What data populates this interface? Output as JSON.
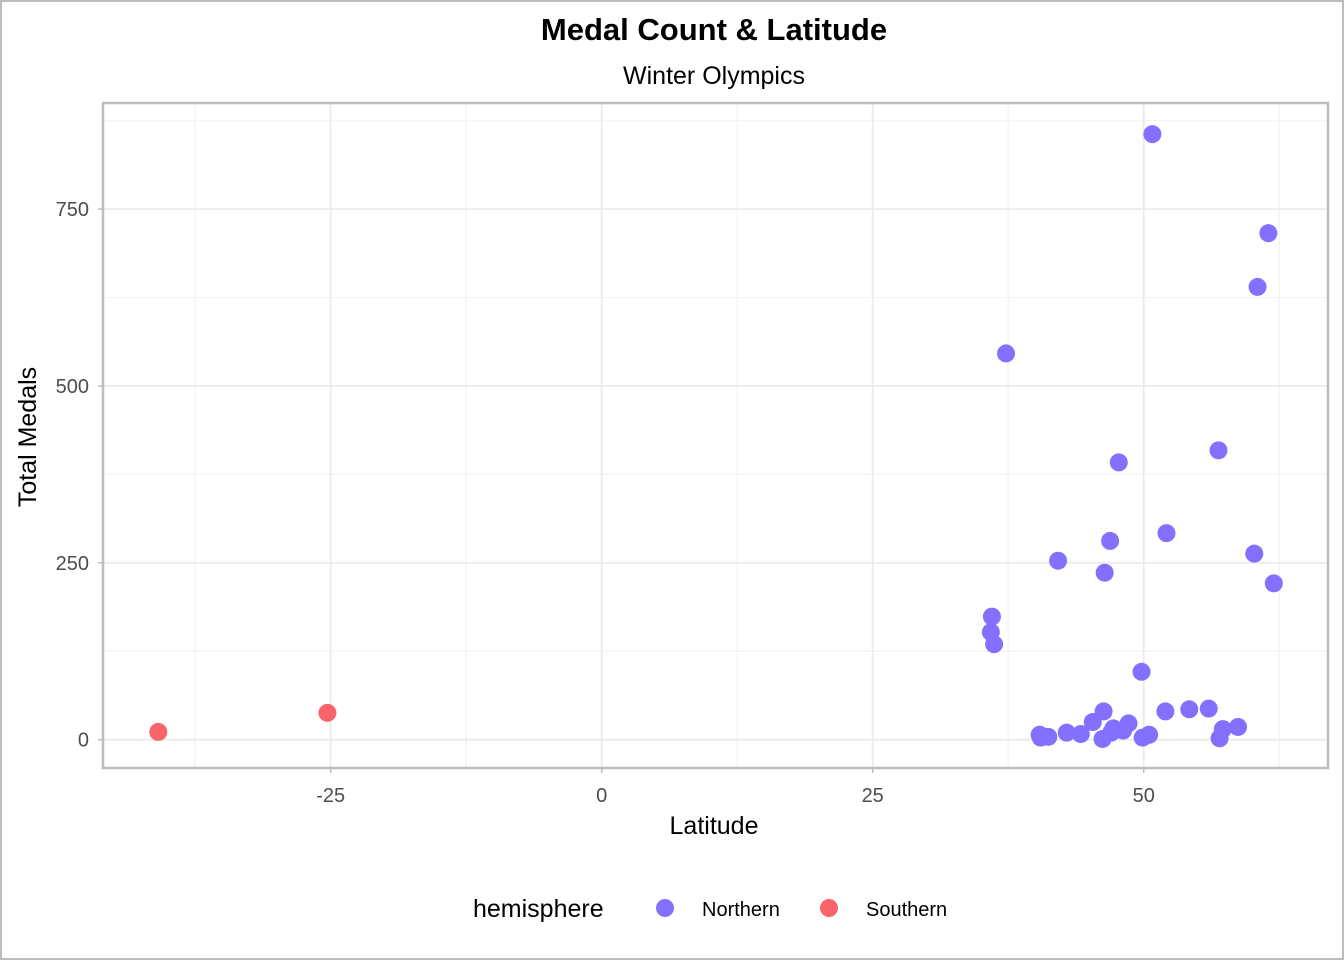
{
  "chart_data": {
    "type": "scatter",
    "title": "Medal Count & Latitude",
    "subtitle": "Winter Olympics",
    "xlabel": "Latitude",
    "ylabel": "Total Medals",
    "xlim": [
      -46,
      67
    ],
    "ylim": [
      -40,
      900
    ],
    "x_ticks": [
      -25,
      0,
      25,
      50
    ],
    "x_tick_labels": [
      "-25",
      "0",
      "25",
      "50"
    ],
    "y_ticks": [
      0,
      250,
      500,
      750
    ],
    "y_tick_labels": [
      "0",
      "250",
      "500",
      "750"
    ],
    "grid": true,
    "legend": {
      "title": "hemisphere",
      "position": "bottom",
      "entries": [
        {
          "label": "Northern",
          "color": "#8470ff"
        },
        {
          "label": "Southern",
          "color": "#f8646a"
        }
      ]
    },
    "series": [
      {
        "name": "Northern",
        "color": "#8470ff",
        "points": [
          [
            50.8,
            856
          ],
          [
            61.5,
            716
          ],
          [
            60.5,
            640
          ],
          [
            37.3,
            546
          ],
          [
            56.9,
            409
          ],
          [
            47.7,
            392
          ],
          [
            52.1,
            292
          ],
          [
            46.9,
            281
          ],
          [
            60.2,
            263
          ],
          [
            42.1,
            253
          ],
          [
            46.4,
            236
          ],
          [
            62.0,
            221
          ],
          [
            36.0,
            174
          ],
          [
            35.9,
            152
          ],
          [
            36.2,
            135
          ],
          [
            49.8,
            96
          ],
          [
            56.0,
            44
          ],
          [
            54.2,
            43
          ],
          [
            52.0,
            40
          ],
          [
            46.3,
            40
          ],
          [
            45.3,
            25
          ],
          [
            48.6,
            23
          ],
          [
            58.7,
            18
          ],
          [
            57.3,
            15
          ],
          [
            47.2,
            16
          ],
          [
            48.1,
            13
          ],
          [
            47.0,
            10
          ],
          [
            42.9,
            10
          ],
          [
            44.2,
            8
          ],
          [
            40.4,
            7
          ],
          [
            50.5,
            7
          ],
          [
            41.2,
            4
          ],
          [
            49.9,
            3
          ],
          [
            40.5,
            3
          ],
          [
            46.2,
            1
          ],
          [
            57.0,
            2
          ]
        ]
      },
      {
        "name": "Southern",
        "color": "#f8646a",
        "points": [
          [
            -40.9,
            11
          ],
          [
            -25.3,
            38
          ]
        ]
      }
    ]
  }
}
